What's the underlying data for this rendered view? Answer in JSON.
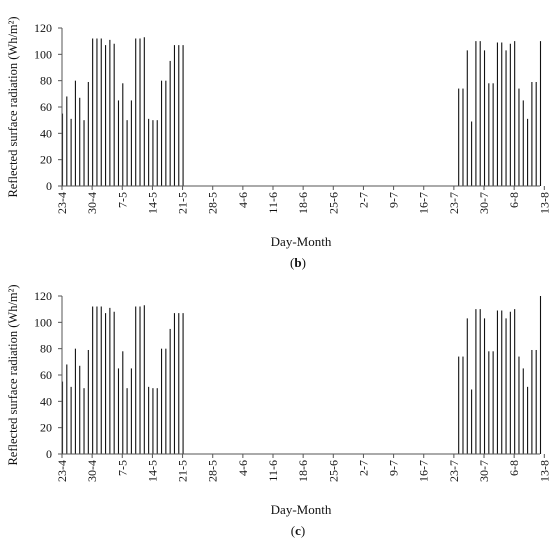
{
  "chart_data": [
    {
      "type": "bar",
      "panel_label": "b",
      "ylabel": "Reflected surface radiation (Wh/m²)",
      "xlabel": "Day-Month",
      "ylim": [
        0,
        120
      ],
      "yticks": [
        0,
        20,
        40,
        60,
        80,
        100,
        120
      ],
      "xticks": [
        "23-4",
        "30-4",
        "7-5",
        "14-5",
        "21-5",
        "28-5",
        "4-6",
        "11-6",
        "18-6",
        "25-6",
        "2-7",
        "9-7",
        "16-7",
        "23-7",
        "30-7",
        "6-8",
        "13-8"
      ],
      "grid": false,
      "day_values_from_23_4": [
        55,
        68,
        51,
        80,
        67,
        50,
        79,
        112,
        112,
        112,
        107,
        111,
        108,
        65,
        78,
        50,
        65,
        112,
        112,
        113,
        51,
        50,
        50,
        80,
        80,
        95,
        107,
        107,
        107,
        0,
        0,
        0,
        0,
        0,
        0,
        0,
        0,
        0,
        0,
        0,
        0,
        0,
        0,
        0,
        0,
        0,
        0,
        0,
        0,
        0,
        0,
        0,
        0,
        0,
        0,
        0,
        0,
        0,
        0,
        0,
        0,
        0,
        0,
        0,
        0,
        0,
        0,
        0,
        0,
        0,
        0,
        0,
        0,
        0,
        0,
        0,
        0,
        0,
        0,
        0,
        0,
        0,
        0,
        0,
        0,
        0,
        0,
        0,
        0,
        0,
        0,
        0,
        74,
        74,
        103,
        49,
        110,
        110,
        103,
        78,
        78,
        109,
        109,
        103,
        108,
        110,
        74,
        65,
        51,
        79,
        79,
        110
      ]
    },
    {
      "type": "bar",
      "panel_label": "c",
      "ylabel": "Reflected surface radiation (Wh/m²)",
      "xlabel": "Day-Month",
      "ylim": [
        0,
        120
      ],
      "yticks": [
        0,
        20,
        40,
        60,
        80,
        100,
        120
      ],
      "xticks": [
        "23-4",
        "30-4",
        "7-5",
        "14-5",
        "21-5",
        "28-5",
        "4-6",
        "11-6",
        "18-6",
        "25-6",
        "2-7",
        "9-7",
        "16-7",
        "23-7",
        "30-7",
        "6-8",
        "13-8"
      ],
      "grid": false,
      "day_values_from_23_4": [
        55,
        68,
        51,
        80,
        67,
        50,
        79,
        112,
        112,
        112,
        107,
        111,
        108,
        65,
        78,
        50,
        65,
        112,
        112,
        113,
        51,
        50,
        50,
        80,
        80,
        95,
        107,
        107,
        107,
        0,
        0,
        0,
        0,
        0,
        0,
        0,
        0,
        0,
        0,
        0,
        0,
        0,
        0,
        0,
        0,
        0,
        0,
        0,
        0,
        0,
        0,
        0,
        0,
        0,
        0,
        0,
        0,
        0,
        0,
        0,
        0,
        0,
        0,
        0,
        0,
        0,
        0,
        0,
        0,
        0,
        0,
        0,
        0,
        0,
        0,
        0,
        0,
        0,
        0,
        0,
        0,
        0,
        0,
        0,
        0,
        0,
        0,
        0,
        0,
        0,
        0,
        0,
        74,
        74,
        103,
        49,
        110,
        110,
        103,
        78,
        78,
        109,
        109,
        103,
        108,
        110,
        74,
        65,
        51,
        79,
        79,
        120
      ]
    }
  ]
}
